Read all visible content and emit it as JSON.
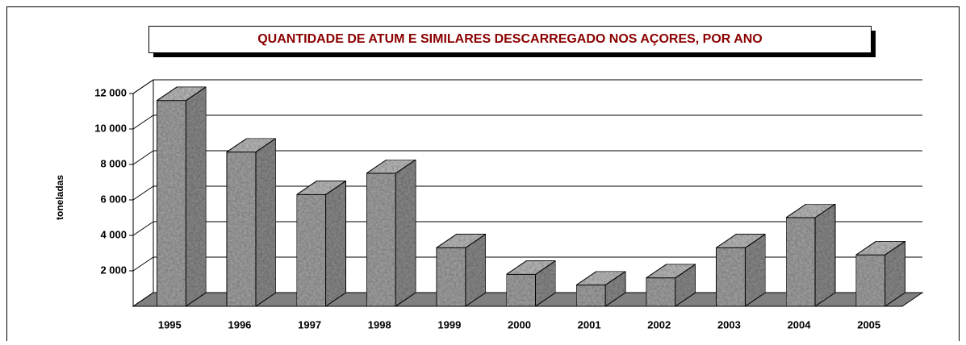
{
  "chart_data": {
    "type": "bar3d",
    "title": "QUANTIDADE DE ATUM E SIMILARES DESCARREGADO NOS AÇORES, POR ANO",
    "y_label": "toneladas",
    "categories": [
      "1995",
      "1996",
      "1997",
      "1998",
      "1999",
      "2000",
      "2001",
      "2002",
      "2003",
      "2004",
      "2005"
    ],
    "values": [
      11600,
      8700,
      6300,
      7500,
      3300,
      1800,
      1200,
      1600,
      3300,
      5000,
      2900
    ],
    "color": "#a6a6a6",
    "ylim": [
      0,
      12000
    ],
    "yticks": [
      {
        "value": 2000,
        "label": "2 000"
      },
      {
        "value": 4000,
        "label": "4 000"
      },
      {
        "value": 6000,
        "label": "6 000"
      },
      {
        "value": 8000,
        "label": "8 000"
      },
      {
        "value": 10000,
        "label": "10 000"
      },
      {
        "value": 12000,
        "label": "12 000"
      }
    ],
    "grid": true
  }
}
